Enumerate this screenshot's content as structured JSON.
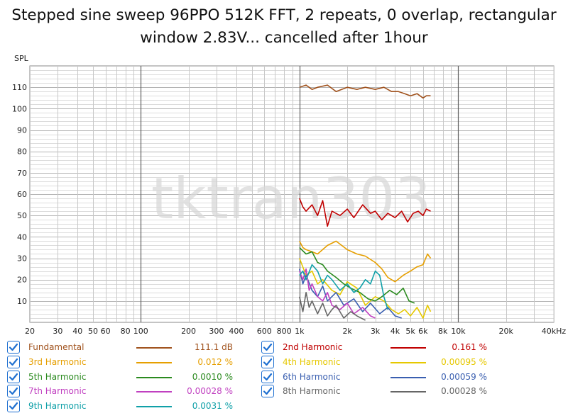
{
  "title_lines": [
    "Stepped sine sweep 96PPO 512K FFT, 2 repeats, 0 overlap, rectangular",
    "window 2.83V... cancelled after 1hour"
  ],
  "watermark": "tktran303",
  "chart_data": {
    "type": "line",
    "title": "Stepped sine sweep 96PPO 512K FFT, 2 repeats, 0 overlap, rectangular window 2.83V... cancelled after 1hour",
    "ylabel": "SPL",
    "xlabel": "",
    "x_scale": "log",
    "xlim": [
      20,
      40000
    ],
    "ylim": [
      0,
      120
    ],
    "grid": true,
    "legend_position": "bottom",
    "x_tick_labels": [
      {
        "v": 20,
        "t": "20"
      },
      {
        "v": 30,
        "t": "30"
      },
      {
        "v": 40,
        "t": "40"
      },
      {
        "v": 50,
        "t": "50"
      },
      {
        "v": 60,
        "t": "60"
      },
      {
        "v": 80,
        "t": "80"
      },
      {
        "v": 100,
        "t": "100"
      },
      {
        "v": 200,
        "t": "200"
      },
      {
        "v": 300,
        "t": "300"
      },
      {
        "v": 400,
        "t": "400"
      },
      {
        "v": 600,
        "t": "600"
      },
      {
        "v": 800,
        "t": "800"
      },
      {
        "v": 1000,
        "t": "1k"
      },
      {
        "v": 2000,
        "t": "2k"
      },
      {
        "v": 3000,
        "t": "3k"
      },
      {
        "v": 4000,
        "t": "4k"
      },
      {
        "v": 5000,
        "t": "5k"
      },
      {
        "v": 6000,
        "t": "6k"
      },
      {
        "v": 8000,
        "t": "8k"
      },
      {
        "v": 10000,
        "t": "10k"
      },
      {
        "v": 20000,
        "t": "20k"
      },
      {
        "v": 40000,
        "t": "40kHz"
      }
    ],
    "y_tick_labels": [
      {
        "v": 10,
        "t": "10"
      },
      {
        "v": 20,
        "t": "20"
      },
      {
        "v": 30,
        "t": "30"
      },
      {
        "v": 40,
        "t": "40"
      },
      {
        "v": 50,
        "t": "50"
      },
      {
        "v": 60,
        "t": "60"
      },
      {
        "v": 70,
        "t": "70"
      },
      {
        "v": 80,
        "t": "80"
      },
      {
        "v": 90,
        "t": "90"
      },
      {
        "v": 100,
        "t": "100"
      },
      {
        "v": 110,
        "t": "110"
      }
    ],
    "series": [
      {
        "name": "Fundamental",
        "value_label": "111.1 dB",
        "color": "#a0521d",
        "x": [
          1000,
          1100,
          1200,
          1300,
          1500,
          1700,
          2000,
          2300,
          2600,
          3000,
          3400,
          3800,
          4200,
          4600,
          5000,
          5500,
          6000,
          6300,
          6700
        ],
        "y": [
          110,
          111,
          109,
          110,
          111,
          108,
          110,
          109,
          110,
          109,
          110,
          108,
          108,
          107,
          106,
          107,
          105,
          106,
          106
        ]
      },
      {
        "name": "2nd Harmonic",
        "value_label": "0.161 %",
        "color": "#c00000",
        "x": [
          1000,
          1050,
          1100,
          1200,
          1300,
          1400,
          1500,
          1600,
          1800,
          2000,
          2200,
          2500,
          2800,
          3000,
          3300,
          3600,
          4000,
          4400,
          4800,
          5200,
          5600,
          6000,
          6300,
          6700
        ],
        "y": [
          58,
          54,
          52,
          55,
          50,
          57,
          45,
          52,
          50,
          53,
          49,
          55,
          51,
          52,
          48,
          51,
          49,
          52,
          47,
          51,
          52,
          50,
          53,
          52
        ]
      },
      {
        "name": "3rd Harmonic",
        "value_label": "0.012 %",
        "color": "#e69f00",
        "x": [
          1000,
          1050,
          1100,
          1200,
          1300,
          1500,
          1700,
          2000,
          2300,
          2600,
          3000,
          3300,
          3600,
          4000,
          4500,
          5000,
          5500,
          6000,
          6400,
          6700
        ],
        "y": [
          38,
          35,
          34,
          33,
          32,
          36,
          38,
          34,
          32,
          31,
          28,
          25,
          21,
          19,
          22,
          24,
          26,
          27,
          32,
          30
        ]
      },
      {
        "name": "4th Harmonic",
        "value_label": "0.00095 %",
        "color": "#e6c800",
        "x": [
          1000,
          1100,
          1200,
          1300,
          1400,
          1600,
          1800,
          2000,
          2300,
          2600,
          3000,
          3400,
          3800,
          4200,
          4600,
          5000,
          5500,
          6000,
          6400,
          6700
        ],
        "y": [
          30,
          22,
          24,
          18,
          20,
          15,
          13,
          19,
          16,
          8,
          12,
          10,
          6,
          4,
          6,
          3,
          7,
          2,
          8,
          5
        ]
      },
      {
        "name": "5th Harmonic",
        "value_label": "0.0010 %",
        "color": "#2b8a1f",
        "x": [
          1000,
          1100,
          1200,
          1300,
          1400,
          1500,
          1700,
          1900,
          2100,
          2400,
          2700,
          3000,
          3300,
          3700,
          4100,
          4500,
          4900,
          5300
        ],
        "y": [
          35,
          32,
          33,
          28,
          27,
          24,
          21,
          18,
          16,
          14,
          11,
          10,
          12,
          15,
          13,
          16,
          10,
          9
        ]
      },
      {
        "name": "6th Harmonic",
        "value_label": "0.00059 %",
        "color": "#3a5fb0",
        "x": [
          1000,
          1050,
          1100,
          1200,
          1300,
          1400,
          1500,
          1700,
          1900,
          2200,
          2500,
          2800,
          3200,
          3600,
          4000,
          4400
        ],
        "y": [
          25,
          18,
          22,
          15,
          12,
          17,
          10,
          14,
          8,
          11,
          5,
          9,
          4,
          7,
          3,
          2
        ]
      },
      {
        "name": "7th Harmonic",
        "value_label": "0.00028 %",
        "color": "#c040c0",
        "x": [
          1000,
          1050,
          1100,
          1150,
          1200,
          1300,
          1400,
          1500,
          1600,
          1800,
          2000,
          2200,
          2500,
          2800,
          3000
        ],
        "y": [
          24,
          20,
          25,
          15,
          18,
          12,
          10,
          14,
          8,
          6,
          9,
          4,
          7,
          3,
          2
        ]
      },
      {
        "name": "8th Harmonic",
        "value_label": "0.00028 %",
        "color": "#666666",
        "x": [
          1000,
          1050,
          1100,
          1150,
          1200,
          1300,
          1400,
          1500,
          1600,
          1700,
          1900,
          2100,
          2300,
          2600
        ],
        "y": [
          12,
          5,
          14,
          7,
          10,
          4,
          9,
          3,
          6,
          8,
          2,
          5,
          3,
          1
        ]
      },
      {
        "name": "9th Harmonic",
        "value_label": "0.0031 %",
        "color": "#10a0a8",
        "x": [
          1000,
          1050,
          1100,
          1200,
          1300,
          1400,
          1500,
          1600,
          1800,
          2000,
          2200,
          2400,
          2600,
          2800,
          3000,
          3200,
          3400,
          3600
        ],
        "y": [
          22,
          24,
          20,
          27,
          24,
          18,
          22,
          20,
          15,
          18,
          14,
          16,
          20,
          18,
          24,
          22,
          12,
          6
        ]
      }
    ]
  },
  "legend": {
    "rows": [
      {
        "series": 0,
        "column": 0,
        "row": 0
      },
      {
        "series": 1,
        "column": 1,
        "row": 0
      },
      {
        "series": 2,
        "column": 0,
        "row": 1
      },
      {
        "series": 3,
        "column": 1,
        "row": 1
      },
      {
        "series": 4,
        "column": 0,
        "row": 2
      },
      {
        "series": 5,
        "column": 1,
        "row": 2
      },
      {
        "series": 6,
        "column": 0,
        "row": 3
      },
      {
        "series": 7,
        "column": 1,
        "row": 3
      },
      {
        "series": 8,
        "column": 0,
        "row": 4
      }
    ],
    "checked": true
  },
  "colors": {
    "grid": "#c8c8c8",
    "grid_major": "#606060",
    "axis_text": "#222222",
    "watermark": "#d8d8d8",
    "checkbox": "#1e6fd0"
  }
}
